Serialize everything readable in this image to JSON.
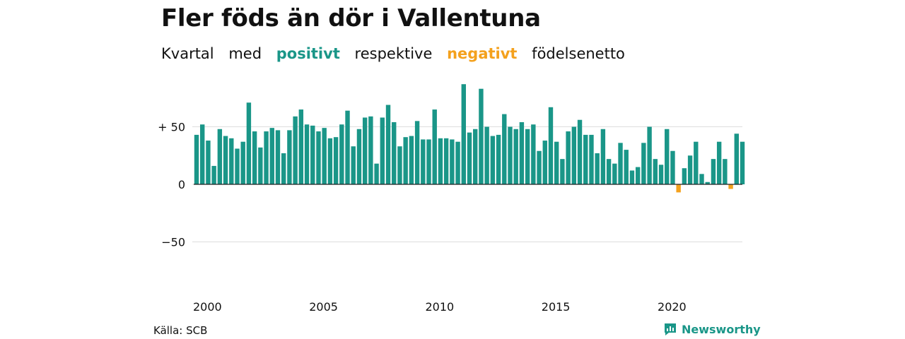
{
  "title": "Fler föds än dör i Vallentuna",
  "subtitle": {
    "w1": "Kvartal",
    "w2": "med",
    "positive": "positivt",
    "w3": "respektive",
    "negative": "negativt",
    "w4": "födelsenetto"
  },
  "source": "Källa: SCB",
  "brand": "Newsworthy",
  "colors": {
    "positive": "#1a9688",
    "negative": "#f4a11d",
    "grid": "#dddddd"
  },
  "chart_data": {
    "type": "bar",
    "title": "Fler föds än dör i Vallentuna",
    "xlabel": "",
    "ylabel": "",
    "ylim": [
      -50,
      90
    ],
    "y_ticks": [
      {
        "value": 50,
        "label": "+ 50"
      },
      {
        "value": 0,
        "label": "0"
      },
      {
        "value": -50,
        "label": "−50"
      }
    ],
    "x_ticks": [
      {
        "year": 2000,
        "label": "2000"
      },
      {
        "year": 2005,
        "label": "2005"
      },
      {
        "year": 2010,
        "label": "2010"
      },
      {
        "year": 2015,
        "label": "2015"
      },
      {
        "year": 2020,
        "label": "2020"
      }
    ],
    "grid": true,
    "start_year": 2000,
    "values": [
      43,
      52,
      38,
      16,
      48,
      42,
      40,
      31,
      37,
      71,
      46,
      32,
      46,
      49,
      47,
      27,
      47,
      59,
      65,
      52,
      51,
      46,
      49,
      40,
      41,
      52,
      64,
      33,
      48,
      58,
      59,
      18,
      58,
      69,
      54,
      33,
      41,
      42,
      55,
      39,
      39,
      65,
      40,
      40,
      39,
      37,
      87,
      45,
      48,
      83,
      50,
      42,
      43,
      61,
      50,
      48,
      54,
      48,
      52,
      29,
      38,
      67,
      37,
      22,
      46,
      50,
      56,
      43,
      43,
      27,
      48,
      22,
      18,
      36,
      30,
      12,
      15,
      36,
      50,
      22,
      17,
      48,
      29,
      -7,
      14,
      25,
      37,
      9,
      2,
      22,
      37,
      22,
      -4,
      44,
      37
    ]
  }
}
